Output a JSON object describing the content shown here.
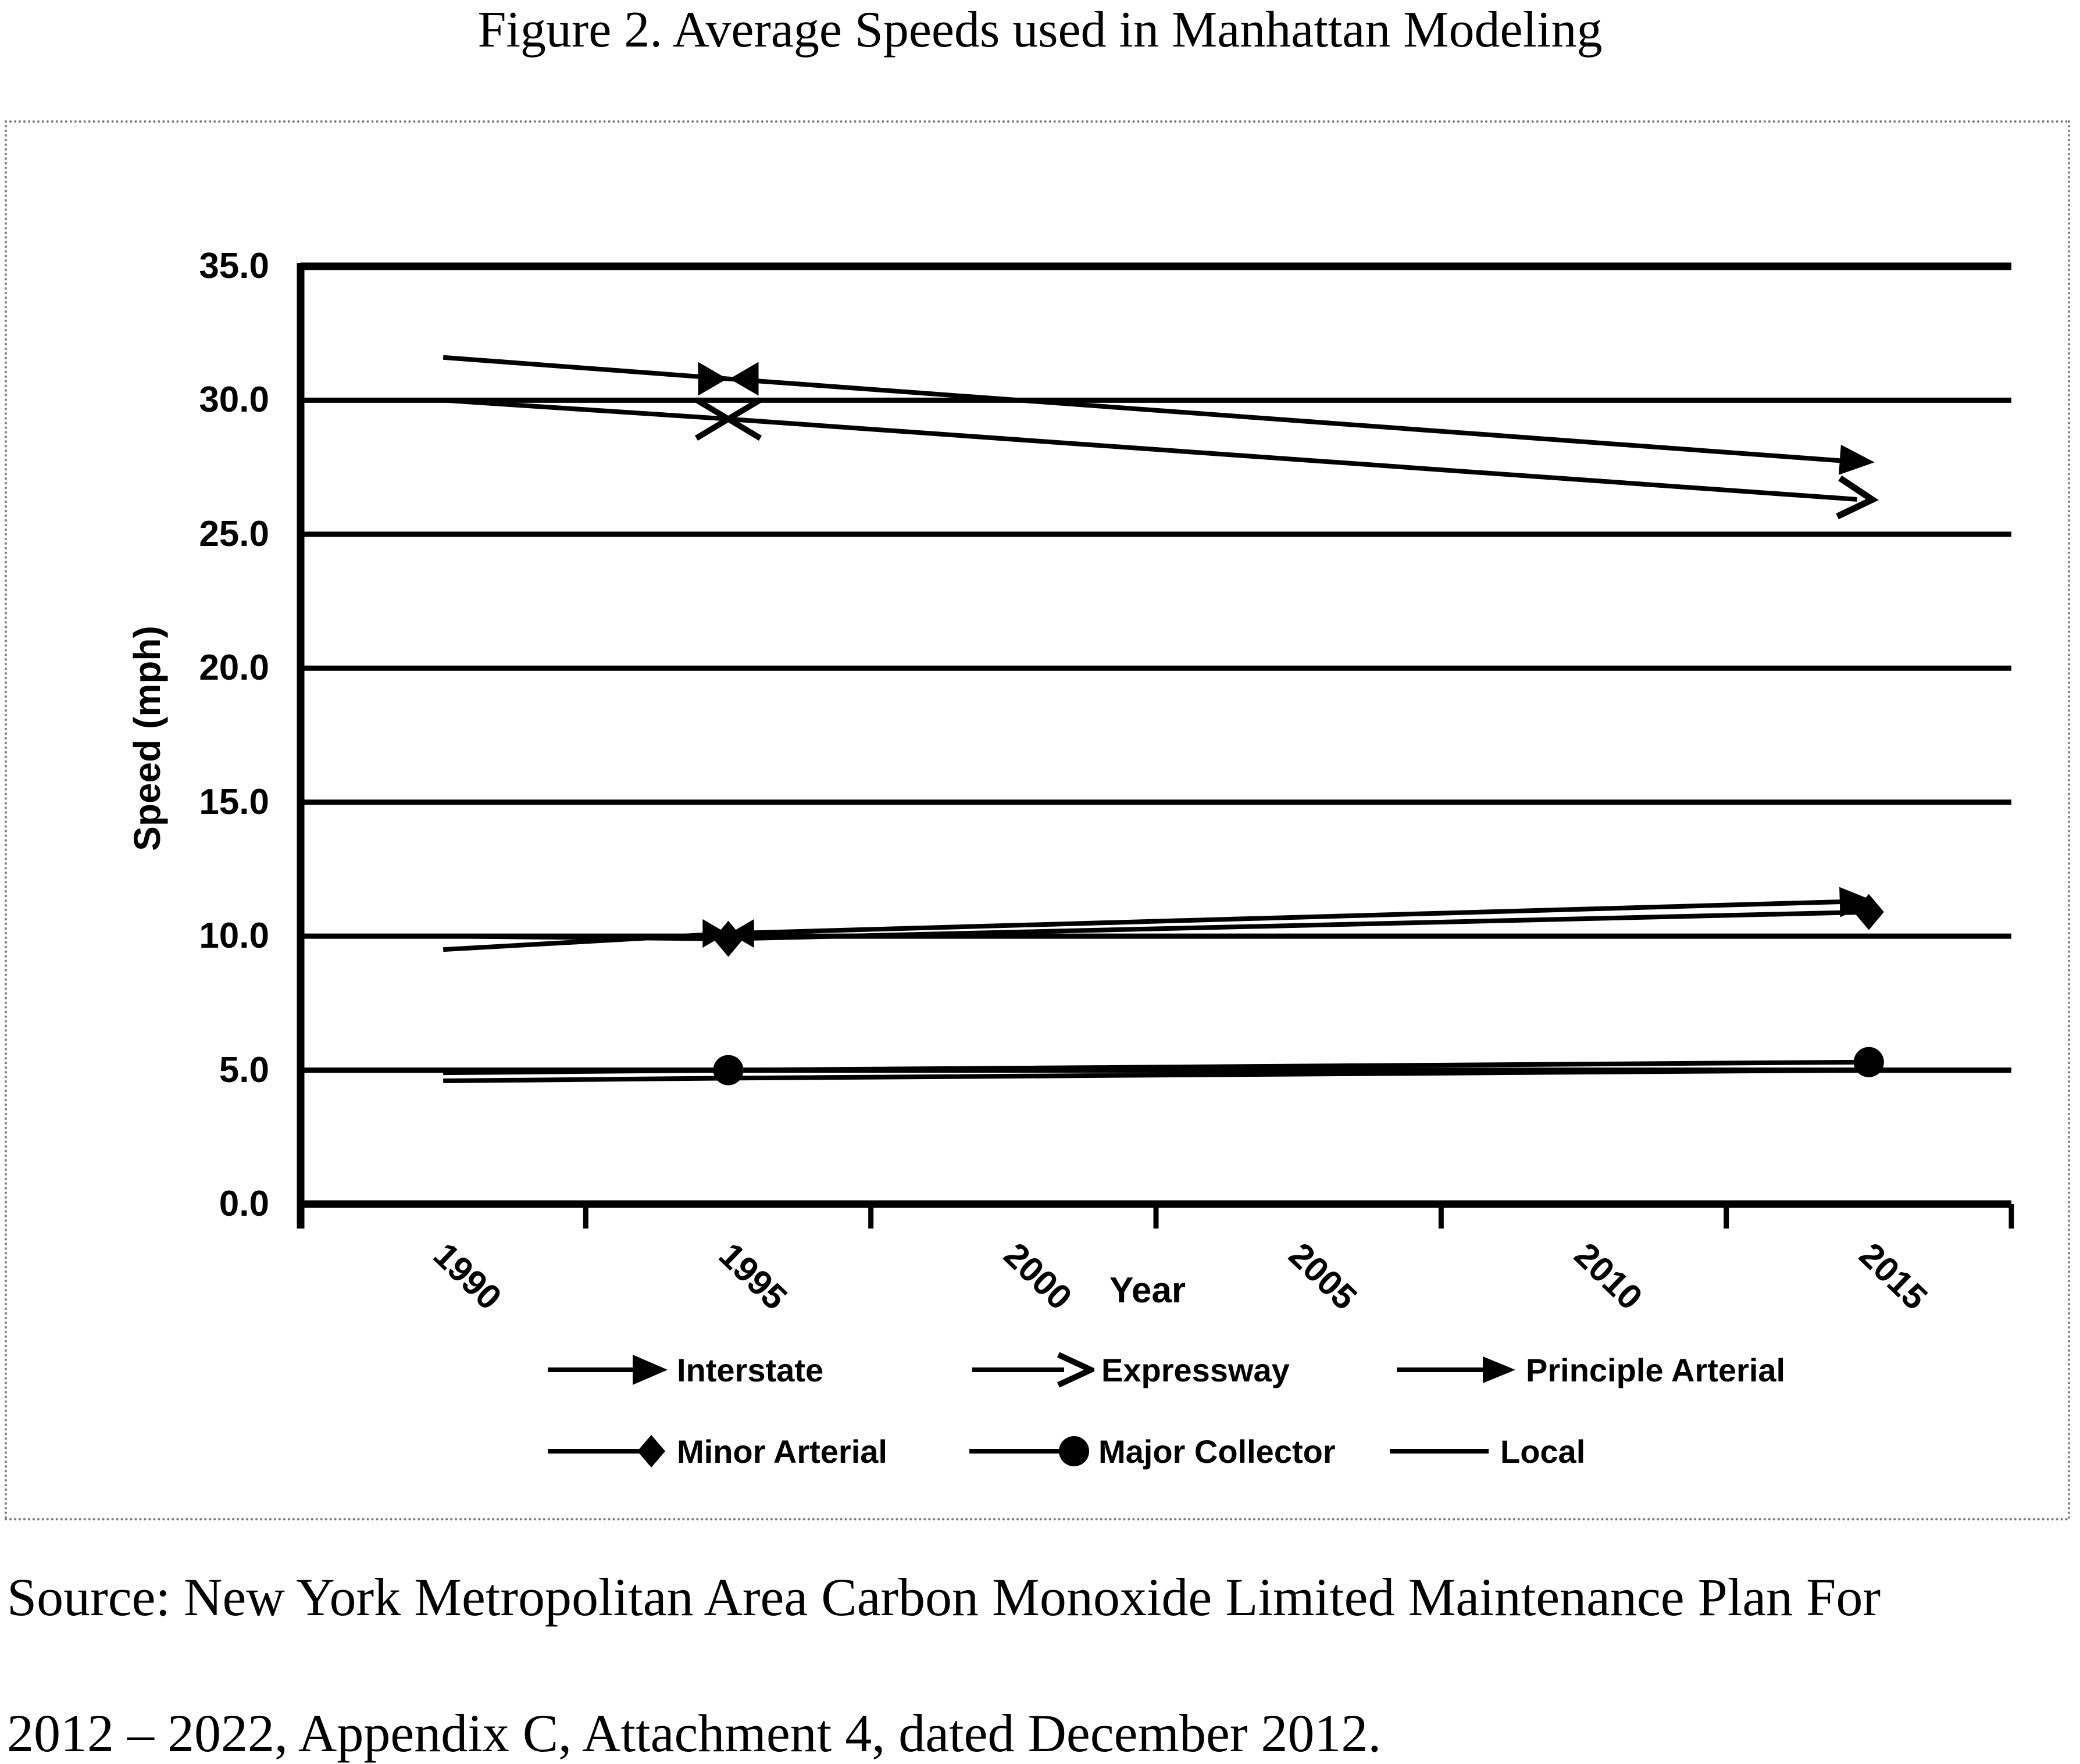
{
  "title": "Figure 2. Average Speeds used in Manhattan Modeling",
  "chart_data": {
    "type": "line",
    "xlabel": "Year",
    "ylabel": "Speed (mph)",
    "ylim": [
      0,
      35
    ],
    "ytick_step": 5,
    "y_tick_format": "one_decimal",
    "grid": "horizontal",
    "legend_position": "bottom",
    "x_axis_labels": [
      "1990",
      "1995",
      "2000",
      "2005",
      "2010",
      "2015"
    ],
    "x": [
      1990,
      1995,
      2015
    ],
    "series": [
      {
        "name": "Interstate",
        "values": [
          31.6,
          30.8,
          27.7
        ],
        "mid_marker": "bowtie",
        "end_marker": "arrow-filled",
        "icon": "arrow-filled"
      },
      {
        "name": "Expressway",
        "values": [
          30.0,
          29.3,
          26.3
        ],
        "mid_marker": "cross",
        "end_marker": "arrow-open",
        "icon": "arrow-open"
      },
      {
        "name": "Principle Arterial",
        "values": [
          9.5,
          10.1,
          11.3
        ],
        "mid_marker": "bowtie-small",
        "end_marker": "arrow-filled",
        "icon": "arrow-filled"
      },
      {
        "name": "Minor Arterial",
        "values": [
          10.0,
          9.9,
          10.9
        ],
        "mid_marker": "diamond",
        "end_marker": "diamond",
        "icon": "diamond"
      },
      {
        "name": "Major Collector",
        "values": [
          4.9,
          5.0,
          5.3
        ],
        "mid_marker": "dot",
        "end_marker": "dot",
        "icon": "dot"
      },
      {
        "name": "Local",
        "values": [
          4.6,
          4.7,
          5.0
        ],
        "mid_marker": "none",
        "end_marker": "none",
        "icon": "line"
      }
    ],
    "colors": {
      "line": "#000000",
      "background": "#ffffff",
      "chart_border": "#7a7a7a"
    }
  },
  "source": {
    "line1": "Source: New York Metropolitan Area Carbon Monoxide Limited Maintenance Plan For",
    "line2": "2012 – 2022, Appendix C, Attachment 4, dated December 2012."
  }
}
